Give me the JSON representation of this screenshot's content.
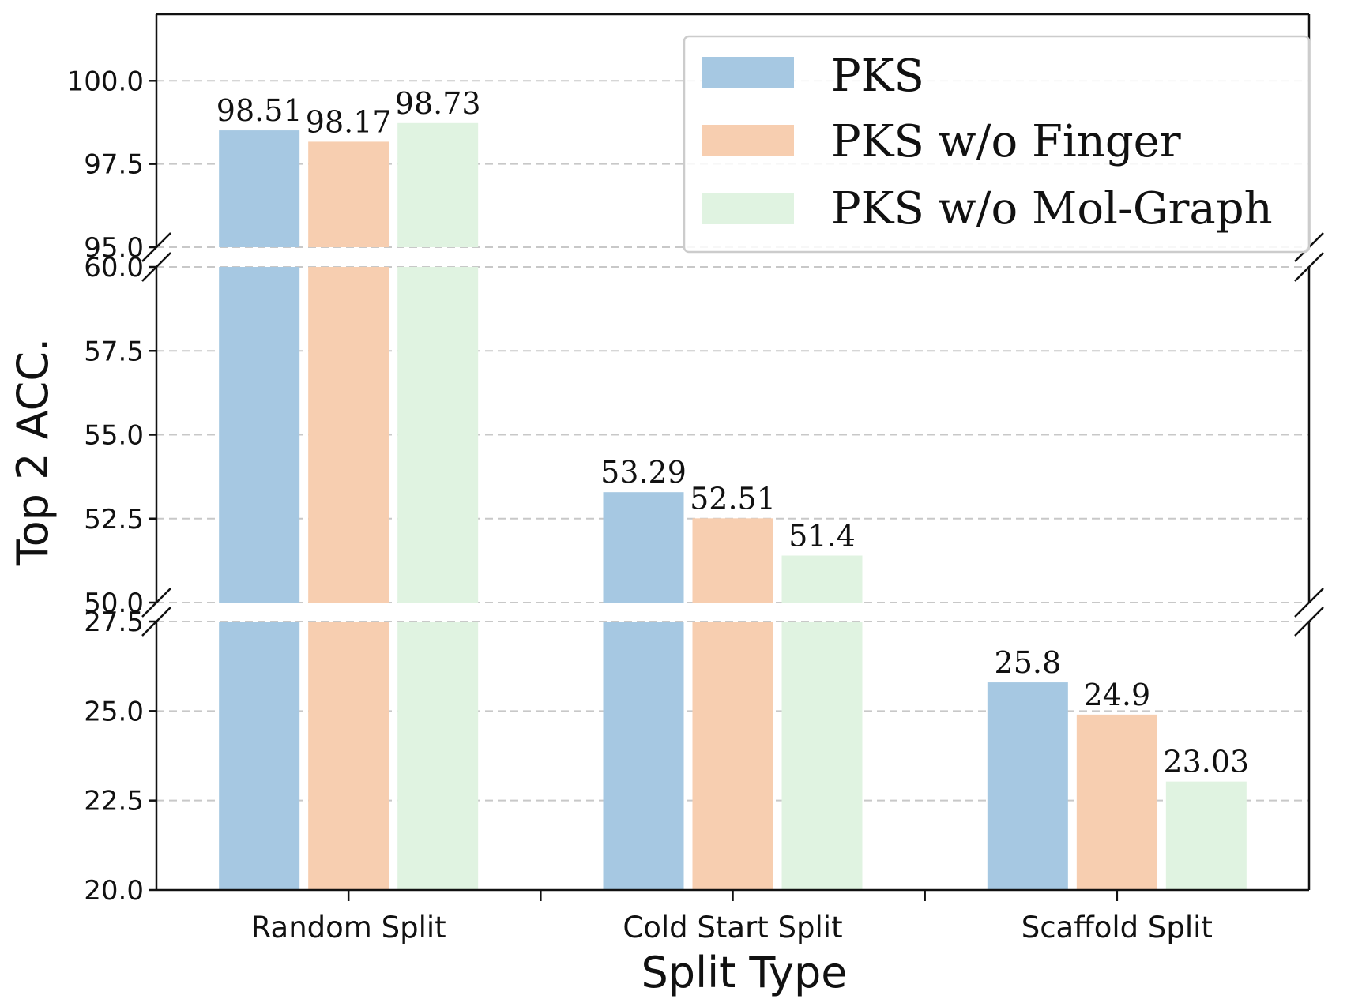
{
  "chart_data": {
    "type": "bar",
    "title": "",
    "xlabel": "Split Type",
    "ylabel": "Top 2 ACC.",
    "categories": [
      "Random Split",
      "Cold Start Split",
      "Scaffold Split"
    ],
    "series": [
      {
        "name": "PKS",
        "values": [
          98.51,
          53.29,
          25.8
        ],
        "labels": [
          "98.51",
          "53.29",
          "25.8"
        ],
        "color": "#a6c8e2"
      },
      {
        "name": "PKS w/o Finger",
        "values": [
          98.17,
          52.51,
          24.9
        ],
        "labels": [
          "98.17",
          "52.51",
          "24.9"
        ],
        "color": "#f7ceb0"
      },
      {
        "name": "PKS w/o Mol-Graph",
        "values": [
          98.73,
          51.4,
          23.03
        ],
        "labels": [
          "98.73",
          "51.4",
          "23.03"
        ],
        "color": "#e0f3e1"
      }
    ],
    "broken_axis": [
      {
        "ylim": [
          95.0,
          102.0
        ],
        "ticks": [
          95.0,
          97.5,
          100.0
        ],
        "tick_labels": [
          "95.0",
          "97.5",
          "100.0"
        ]
      },
      {
        "ylim": [
          50.0,
          60.0
        ],
        "ticks": [
          50.0,
          52.5,
          55.0,
          57.5,
          60.0
        ],
        "tick_labels": [
          "50.0",
          "52.5",
          "55.0",
          "57.5",
          "60.0"
        ]
      },
      {
        "ylim": [
          20.0,
          27.5
        ],
        "ticks": [
          20.0,
          22.5,
          25.0,
          27.5
        ],
        "tick_labels": [
          "20.0",
          "22.5",
          "25.0",
          "27.5"
        ]
      }
    ],
    "grid": true,
    "legend_position": "top-right"
  }
}
